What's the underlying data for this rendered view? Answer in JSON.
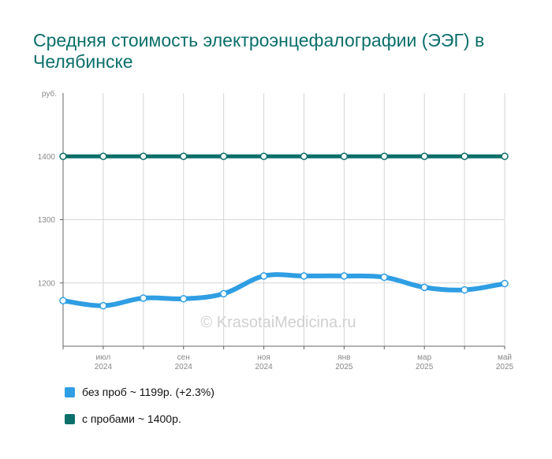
{
  "title": "Средняя стоимость электроэнцефалографии (ЭЭГ) в Челябинске",
  "watermark": "© KrasotaiMedicina.ru",
  "colors": {
    "background": "#ffffff",
    "title": "#0b6f6a",
    "grid": "#d5d5d5",
    "axis": "#666666",
    "tick": "#888888",
    "series_without_tests": "#2f9ee3",
    "series_with_tests": "#0b6f6a",
    "watermark": "#d0d0d0"
  },
  "chart_data": {
    "type": "line",
    "title": "Средняя стоимость электроэнцефалографии (ЭЭГ) в Челябинске",
    "xlabel": "",
    "ylabel": "",
    "y_unit": "руб.",
    "x": [
      "2024-06",
      "2024-07",
      "2024-08",
      "2024-09",
      "2024-10",
      "2024-11",
      "2024-12",
      "2025-01",
      "2025-02",
      "2025-03",
      "2025-04",
      "2025-05"
    ],
    "x_tick_labels": [
      {
        "month": "июл",
        "year": "2024",
        "index": 1
      },
      {
        "month": "сен",
        "year": "2024",
        "index": 3
      },
      {
        "month": "ноя",
        "year": "2024",
        "index": 5
      },
      {
        "month": "янв",
        "year": "2025",
        "index": 7
      },
      {
        "month": "мар",
        "year": "2025",
        "index": 9
      },
      {
        "month": "май",
        "year": "2025",
        "index": 11
      }
    ],
    "y_ticks": [
      1200,
      1300,
      1400
    ],
    "ylim": [
      1100,
      1500
    ],
    "grid": true,
    "legend_position": "bottom-left",
    "series": [
      {
        "name": "без проб ~ 1199р. (+2.3%)",
        "color": "#2f9ee3",
        "values": [
          1172,
          1164,
          1176,
          1175,
          1183,
          1211,
          1211,
          1211,
          1209,
          1193,
          1189,
          1199
        ]
      },
      {
        "name": "с пробами ~ 1400р.",
        "color": "#0b6f6a",
        "values": [
          1400,
          1400,
          1400,
          1400,
          1400,
          1400,
          1400,
          1400,
          1400,
          1400,
          1400,
          1400
        ]
      }
    ]
  }
}
